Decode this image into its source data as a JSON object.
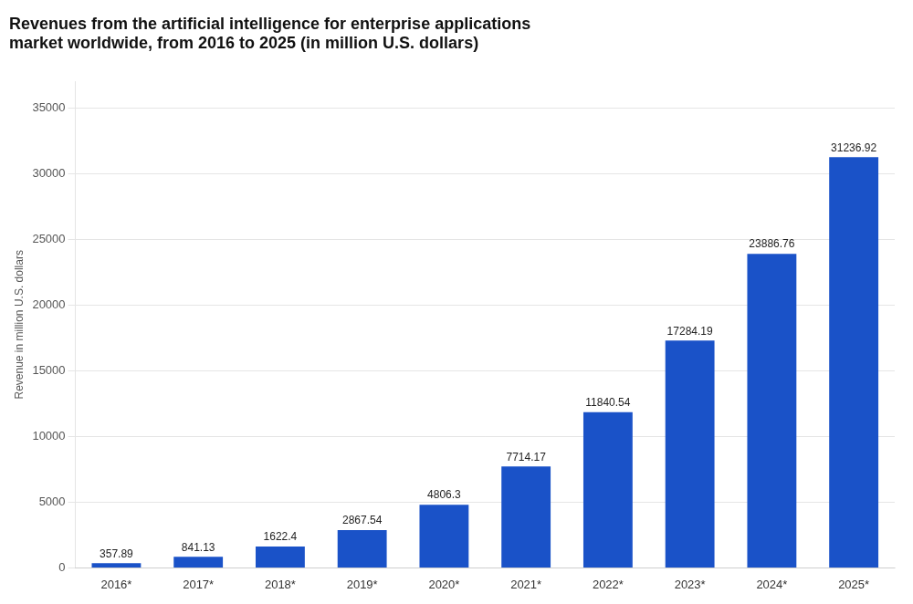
{
  "chart_data": {
    "type": "bar",
    "title": [
      "Revenues from the artificial intelligence for enterprise applications",
      "market worldwide, from 2016 to 2025 (in million U.S. dollars)"
    ],
    "ylabel": "Revenue in million U.S. dollars",
    "categories": [
      "2016*",
      "2017*",
      "2018*",
      "2019*",
      "2020*",
      "2021*",
      "2022*",
      "2023*",
      "2024*",
      "2025*"
    ],
    "values": [
      357.89,
      841.13,
      1622.4,
      2867.54,
      4806.3,
      7714.17,
      11840.54,
      17284.19,
      23886.76,
      31236.92
    ],
    "color": "#1a52c8",
    "ylim": [
      0,
      37000
    ],
    "yticks": [
      0,
      5000,
      10000,
      15000,
      20000,
      25000,
      30000,
      35000
    ],
    "grid": true,
    "data_labels": true
  }
}
